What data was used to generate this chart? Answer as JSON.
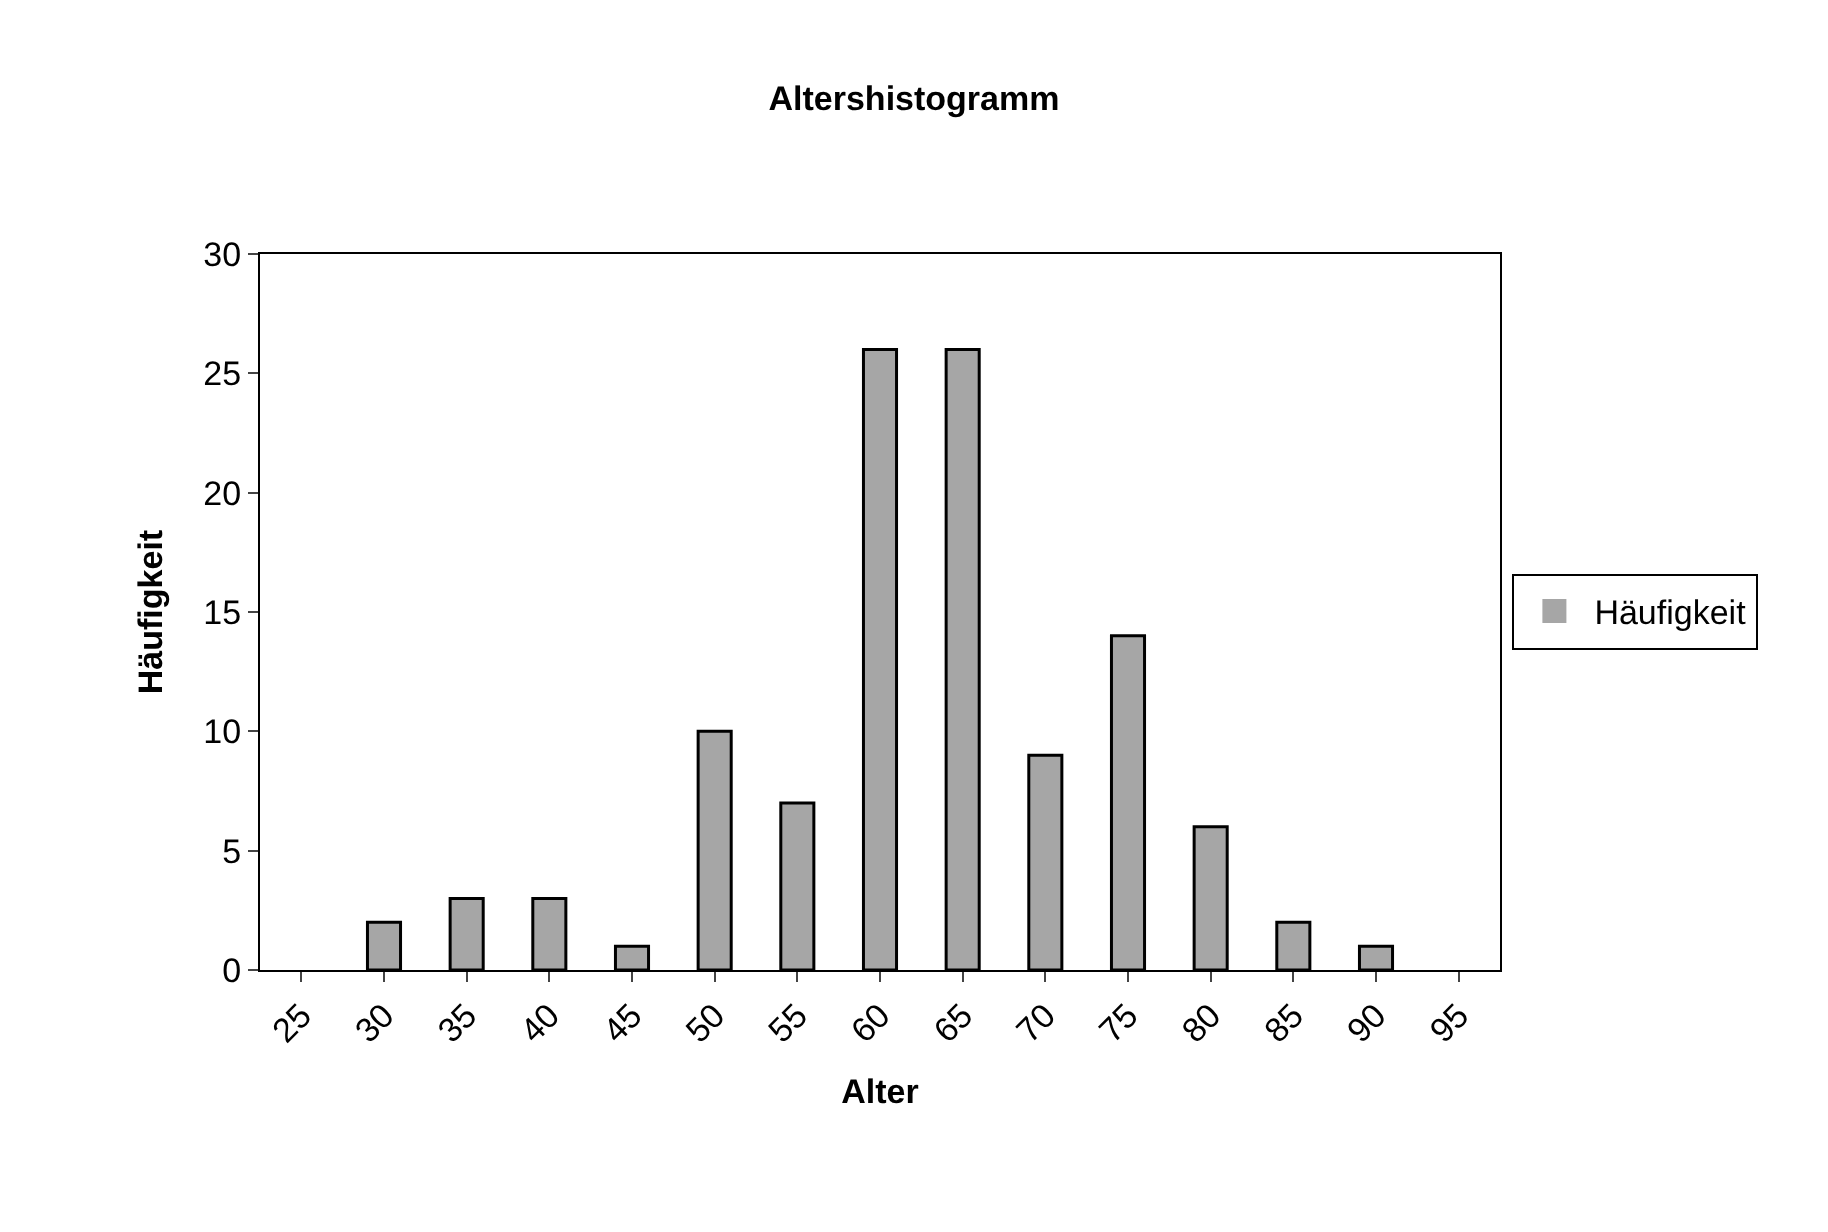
{
  "chart_data": {
    "type": "bar",
    "title": "Altershistogramm",
    "xlabel": "Alter",
    "ylabel": "Häufigkeit",
    "categories": [
      "25",
      "30",
      "35",
      "40",
      "45",
      "50",
      "55",
      "60",
      "65",
      "70",
      "75",
      "80",
      "85",
      "90",
      "95"
    ],
    "series": [
      {
        "name": "Häufigkeit",
        "color": "#a6a6a6",
        "values": [
          0,
          2,
          3,
          3,
          1,
          10,
          7,
          26,
          26,
          9,
          14,
          6,
          2,
          1,
          0
        ]
      }
    ],
    "ylim": [
      0,
      30
    ],
    "yticks": [
      0,
      5,
      10,
      15,
      20,
      25,
      30
    ],
    "legend": "right"
  }
}
